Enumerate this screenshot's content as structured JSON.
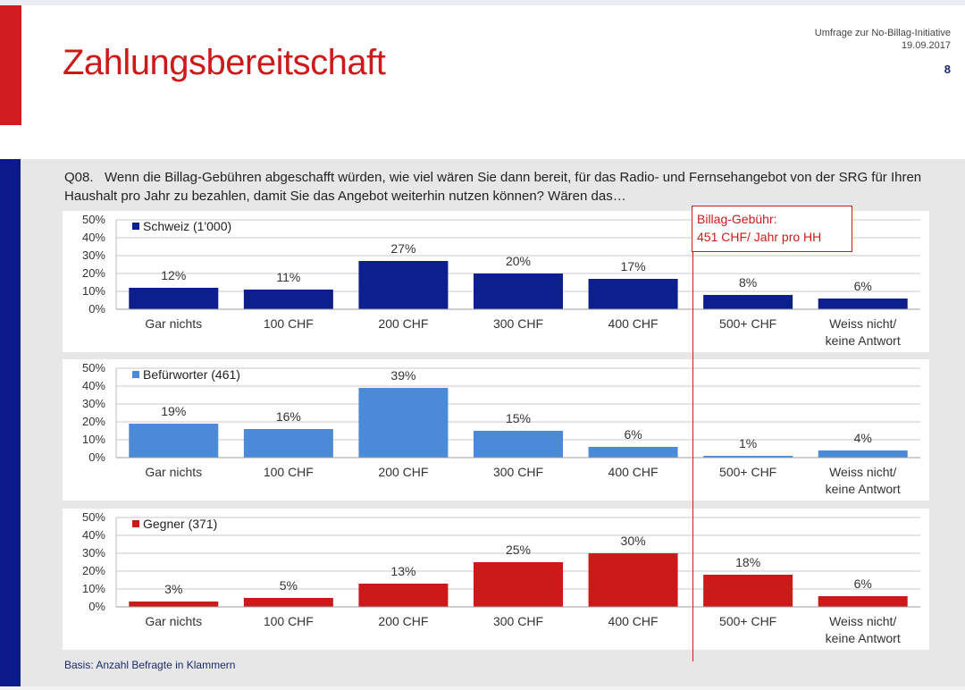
{
  "header": {
    "title": "Zahlungsbereitschaft",
    "survey": "Umfrage zur No-Billag-Initiative",
    "date": "19.09.2017",
    "page_number": "8"
  },
  "question": {
    "id": "Q08.",
    "text": "Wenn die Billag-Gebühren abgeschafft würden, wie viel wären Sie dann bereit, für das Radio- und Fernsehangebot von der SRG für Ihren Haushalt pro Jahr zu bezahlen, damit Sie das Angebot weiterhin nutzen können? Wären das…"
  },
  "annotation": {
    "line1": "Billag-Gebühr:",
    "line2": "451 CHF/ Jahr pro HH"
  },
  "footer": {
    "basis": "Basis: Anzahl Befragte in Klammern"
  },
  "colors": {
    "red": "#cc1a1a",
    "navy": "#0a1a8a",
    "schweiz": "#0d1f8c",
    "befuerworter": "#4a8ad6",
    "gegner": "#cc1a1a"
  },
  "chart_data": [
    {
      "type": "bar",
      "legend": "Schweiz (1'000)",
      "color": "#0d1f8c",
      "categories": [
        [
          "Gar nichts"
        ],
        [
          "100 CHF"
        ],
        [
          "200 CHF"
        ],
        [
          "300 CHF"
        ],
        [
          "400 CHF"
        ],
        [
          "500+ CHF"
        ],
        [
          "Weiss nicht/",
          "keine Antwort"
        ]
      ],
      "values": [
        12,
        11,
        27,
        20,
        17,
        8,
        6
      ],
      "ylim": [
        0,
        50
      ],
      "yticks": [
        0,
        10,
        20,
        30,
        40,
        50
      ],
      "ytick_labels": [
        "0%",
        "10%",
        "20%",
        "30%",
        "40%",
        "50%"
      ]
    },
    {
      "type": "bar",
      "legend": "Befürworter (461)",
      "color": "#4a8ad6",
      "categories": [
        [
          "Gar nichts"
        ],
        [
          "100 CHF"
        ],
        [
          "200 CHF"
        ],
        [
          "300 CHF"
        ],
        [
          "400 CHF"
        ],
        [
          "500+ CHF"
        ],
        [
          "Weiss nicht/",
          "keine Antwort"
        ]
      ],
      "values": [
        19,
        16,
        39,
        15,
        6,
        1,
        4
      ],
      "ylim": [
        0,
        50
      ],
      "yticks": [
        0,
        10,
        20,
        30,
        40,
        50
      ],
      "ytick_labels": [
        "0%",
        "10%",
        "20%",
        "30%",
        "40%",
        "50%"
      ]
    },
    {
      "type": "bar",
      "legend": "Gegner (371)",
      "color": "#cc1a1a",
      "categories": [
        [
          "Gar nichts"
        ],
        [
          "100 CHF"
        ],
        [
          "200 CHF"
        ],
        [
          "300 CHF"
        ],
        [
          "400 CHF"
        ],
        [
          "500+ CHF"
        ],
        [
          "Weiss nicht/",
          "keine Antwort"
        ]
      ],
      "values": [
        3,
        5,
        13,
        25,
        30,
        18,
        6
      ],
      "ylim": [
        0,
        50
      ],
      "yticks": [
        0,
        10,
        20,
        30,
        40,
        50
      ],
      "ytick_labels": [
        "0%",
        "10%",
        "20%",
        "30%",
        "40%",
        "50%"
      ]
    }
  ]
}
